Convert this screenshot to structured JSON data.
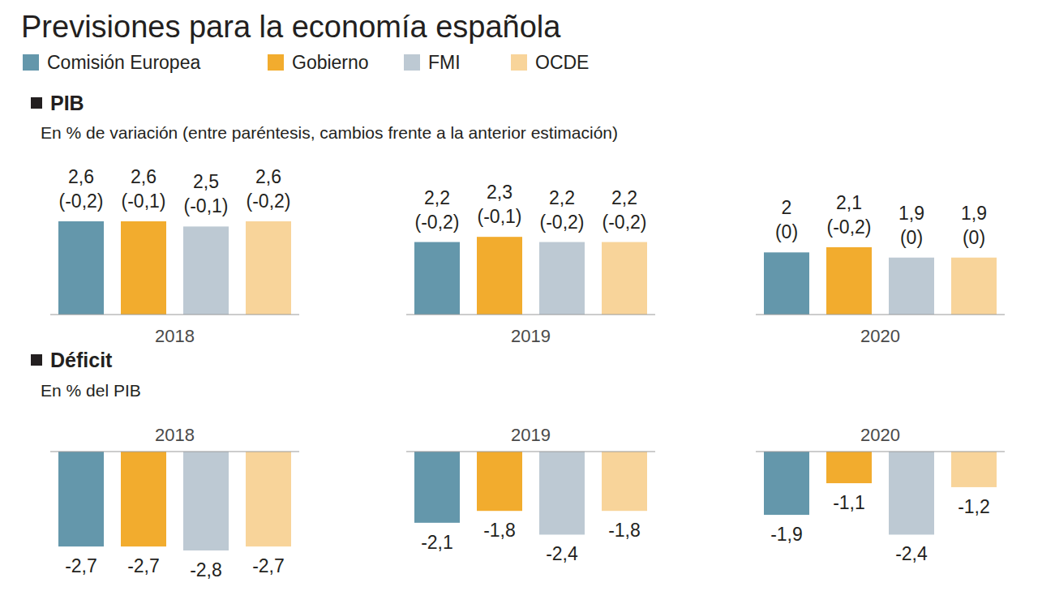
{
  "chart_data": [
    {
      "type": "bar",
      "header": "Previsiones para la economía española",
      "title": "PIB",
      "subtitle": "En % de variación (entre paréntesis, cambios frente a la anterior estimación)",
      "categories": [
        "2018",
        "2019",
        "2020"
      ],
      "ylim": [
        0.8,
        2.6
      ],
      "tick_labels": false,
      "data_labels": true,
      "legend": "top",
      "series": [
        {
          "name": "Comisión Europea",
          "color": "#6497ab",
          "values": [
            2.6,
            2.2,
            2
          ],
          "value_labels": [
            "2,6",
            "2,2",
            "2"
          ],
          "changes": [
            -0.2,
            -0.2,
            0
          ],
          "change_labels": [
            "(-0,2)",
            "(-0,2)",
            "(0)"
          ]
        },
        {
          "name": "Gobierno",
          "color": "#f2ac2e",
          "values": [
            2.6,
            2.3,
            2.1
          ],
          "value_labels": [
            "2,6",
            "2,3",
            "2,1"
          ],
          "changes": [
            -0.1,
            -0.1,
            -0.2
          ],
          "change_labels": [
            "(-0,1)",
            "(-0,1)",
            "(-0,2)"
          ]
        },
        {
          "name": "FMI",
          "color": "#bdc9d3",
          "values": [
            2.5,
            2.2,
            1.9
          ],
          "value_labels": [
            "2,5",
            "2,2",
            "1,9"
          ],
          "changes": [
            -0.1,
            -0.2,
            0
          ],
          "change_labels": [
            "(-0,1)",
            "(-0,2)",
            "(0)"
          ]
        },
        {
          "name": "OCDE",
          "color": "#f8d49a",
          "values": [
            2.6,
            2.2,
            1.9
          ],
          "value_labels": [
            "2,6",
            "2,2",
            "1,9"
          ],
          "changes": [
            -0.2,
            -0.2,
            0
          ],
          "change_labels": [
            "(-0,2)",
            "(-0,2)",
            "(0)"
          ]
        }
      ]
    },
    {
      "type": "bar",
      "title": "Déficit",
      "subtitle": "En % del PIB",
      "categories": [
        "2018",
        "2019",
        "2020"
      ],
      "ylim": [
        -2.8,
        -0.3
      ],
      "tick_labels": false,
      "data_labels": true,
      "series": [
        {
          "color": "#6497ab",
          "values": [
            -2.7,
            -2.1,
            -1.9
          ],
          "value_labels": [
            "-2,7",
            "-2,1",
            "-1,9"
          ]
        },
        {
          "color": "#f2ac2e",
          "values": [
            -2.7,
            -1.8,
            -1.1
          ],
          "value_labels": [
            "-2,7",
            "-1,8",
            "-1,1"
          ]
        },
        {
          "color": "#bdc9d3",
          "values": [
            -2.8,
            -2.4,
            -2.4
          ],
          "value_labels": [
            "-2,8",
            "-2,4",
            "-2,4"
          ]
        },
        {
          "color": "#f8d49a",
          "values": [
            -2.7,
            -1.8,
            -1.2
          ],
          "value_labels": [
            "-2,7",
            "-1,8",
            "-1,2"
          ]
        }
      ]
    }
  ]
}
